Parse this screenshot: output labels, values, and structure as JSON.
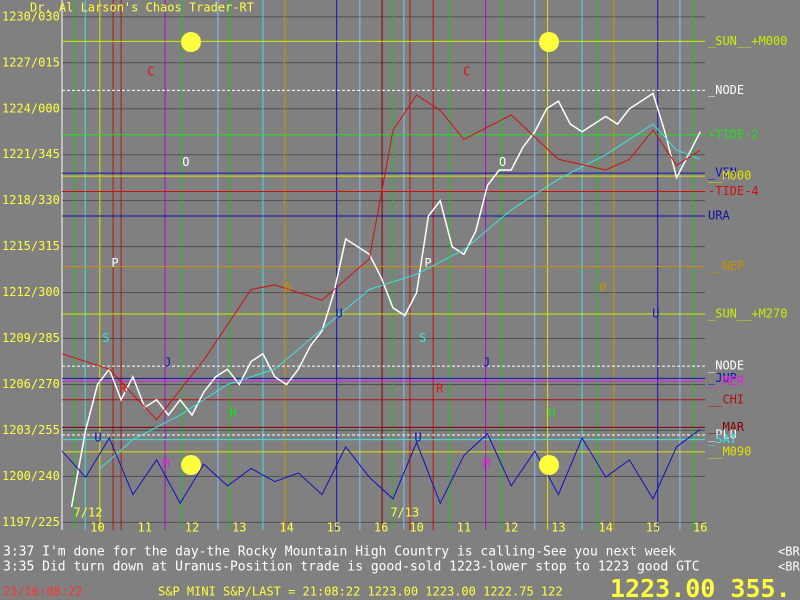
{
  "title": "Dr. Al Larson's Chaos Trader-RT",
  "chart_data": {
    "type": "line",
    "ylim": [
      1196.5,
      1231.1
    ],
    "xlim": [
      0,
      13.6
    ],
    "y2lim": [
      0,
      100
    ],
    "yticks": [
      {
        "value": 1230,
        "label": "1230/030"
      },
      {
        "value": 1227,
        "label": "1227/015"
      },
      {
        "value": 1224,
        "label": "1224/000"
      },
      {
        "value": 1221,
        "label": "1221/345"
      },
      {
        "value": 1218,
        "label": "1218/330"
      },
      {
        "value": 1215,
        "label": "1215/315"
      },
      {
        "value": 1212,
        "label": "1212/300"
      },
      {
        "value": 1209,
        "label": "1209/285"
      },
      {
        "value": 1206,
        "label": "1206/270"
      },
      {
        "value": 1203,
        "label": "1203/255"
      },
      {
        "value": 1200,
        "label": "1200/240"
      },
      {
        "value": 1197,
        "label": "1197/225"
      }
    ],
    "xticks": [
      {
        "value": 0.75,
        "label": "10"
      },
      {
        "value": 1.75,
        "label": "11"
      },
      {
        "value": 2.75,
        "label": "12"
      },
      {
        "value": 3.75,
        "label": "13"
      },
      {
        "value": 4.75,
        "label": "14"
      },
      {
        "value": 5.75,
        "label": "15"
      },
      {
        "value": 6.75,
        "label": "16"
      },
      {
        "value": 7.5,
        "label": "10"
      },
      {
        "value": 8.5,
        "label": "11"
      },
      {
        "value": 9.5,
        "label": "12"
      },
      {
        "value": 10.5,
        "label": "13"
      },
      {
        "value": 11.5,
        "label": "14"
      },
      {
        "value": 12.5,
        "label": "15"
      },
      {
        "value": 13.5,
        "label": "16"
      }
    ],
    "dates": [
      {
        "value": 0.55,
        "label": "7/12"
      },
      {
        "value": 7.25,
        "label": "7/13"
      }
    ],
    "series": [
      {
        "name": "price",
        "color": "#ffffff",
        "x": [
          0.2,
          0.5,
          0.75,
          1,
          1.25,
          1.5,
          1.75,
          2,
          2.25,
          2.5,
          2.75,
          3,
          3.25,
          3.5,
          3.75,
          4,
          4.25,
          4.5,
          4.75,
          5,
          5.25,
          5.5,
          5.75,
          6,
          6.25,
          6.5,
          6.75,
          7,
          7.25,
          7.5,
          7.75,
          8,
          8.25,
          8.5,
          8.75,
          9,
          9.25,
          9.5,
          9.75,
          10,
          10.25,
          10.5,
          10.75,
          11,
          11.25,
          11.5,
          11.75,
          12,
          12.25,
          12.5,
          12.75,
          13,
          13.25,
          13.5
        ],
        "values": [
          1198,
          1203,
          1206,
          1207,
          1205,
          1206.5,
          1204.5,
          1205,
          1204,
          1205,
          1204,
          1205.5,
          1206.5,
          1207,
          1206,
          1207.5,
          1208,
          1206.5,
          1206,
          1207,
          1208.5,
          1209.5,
          1212,
          1215.5,
          1215,
          1214.5,
          1213,
          1211,
          1210.5,
          1212,
          1217,
          1218,
          1215,
          1214.5,
          1216,
          1219,
          1220,
          1220,
          1221.5,
          1222.5,
          1224,
          1224.5,
          1223,
          1222.5,
          1223,
          1223.5,
          1223,
          1224,
          1224.5,
          1225,
          1222.5,
          1219.5,
          1221,
          1222.5
        ]
      },
      {
        "name": "average",
        "color": "#40e0e0",
        "x": [
          0.8,
          1.5,
          2.5,
          3.5,
          4.5,
          5.5,
          6.5,
          7.5,
          8.5,
          9.5,
          10.5,
          11.5,
          12.5,
          13,
          13.5
        ],
        "values": [
          1200.5,
          1202.4,
          1204,
          1206,
          1207,
          1209.6,
          1212.2,
          1213.2,
          1214.8,
          1217.4,
          1219.4,
          1221,
          1223,
          1221.3,
          1220.7
        ]
      },
      {
        "name": "red",
        "color": "#d01010",
        "x": [
          0,
          1,
          2,
          3,
          4,
          4.5,
          5.5,
          6.5,
          7,
          7.5,
          8,
          8.5,
          9.5,
          10.5,
          11.5,
          12,
          12.5,
          13,
          13.5
        ],
        "values": [
          1208,
          1207,
          1203.7,
          1207.6,
          1212.2,
          1212.5,
          1211.5,
          1214.2,
          1222.6,
          1224.9,
          1223.9,
          1222,
          1223.6,
          1220.7,
          1220,
          1220.7,
          1222.6,
          1220.3,
          1221.3
        ]
      },
      {
        "name": "oscillator",
        "color": "#1010c0",
        "axis": "y2",
        "x": [
          0,
          0.5,
          1,
          1.5,
          2,
          2.5,
          3,
          3.5,
          4,
          4.5,
          5,
          5.5,
          6,
          6.5,
          7,
          7.5,
          8,
          8.5,
          9,
          9.5,
          10,
          10.5,
          11,
          11.5,
          12,
          12.5,
          13,
          13.5
        ],
        "values": [
          70,
          40,
          85,
          20,
          60,
          10,
          55,
          30,
          50,
          35,
          45,
          20,
          75,
          40,
          15,
          80,
          10,
          65,
          90,
          30,
          70,
          20,
          85,
          40,
          60,
          15,
          75,
          95
        ]
      }
    ],
    "levels": [
      {
        "label": "_SUN__+M000",
        "value": 1228.4,
        "color": "#c8f000"
      },
      {
        "label": "_NODE",
        "value": 1225.2,
        "color": "#ffffff"
      },
      {
        "label": "+TIDE-2",
        "value": 1222.3,
        "color": "#20e020"
      },
      {
        "label": "_VEN",
        "value": 1219.8,
        "color": "#1010c0"
      },
      {
        "label": "__M000",
        "value": 1219.6,
        "color": "#e0e000"
      },
      {
        "label": "-TIDE-4",
        "value": 1218.6,
        "color": "#d01010"
      },
      {
        "label": "URA",
        "value": 1217,
        "color": "#1010a0"
      },
      {
        "label": "__NEP",
        "value": 1213.7,
        "color": "#c89000"
      },
      {
        "label": "_SUN__+M270",
        "value": 1210.6,
        "color": "#c8f000"
      },
      {
        "label": "_NODE",
        "value": 1207.2,
        "color": "#ffffff"
      },
      {
        "label": "_JUP",
        "value": 1206.4,
        "color": "#1010c0"
      },
      {
        "label": "__MER",
        "value": 1206.2,
        "color": "#e020e0"
      },
      {
        "label": "__CHI",
        "value": 1205,
        "color": "#b01010"
      },
      {
        "label": "__MAR",
        "value": 1203.2,
        "color": "#800000"
      },
      {
        "label": "_PLU",
        "value": 1202.7,
        "color": "#ffffff"
      },
      {
        "label": "_SAT",
        "value": 1202.4,
        "color": "#40e0e0"
      },
      {
        "label": "__M090",
        "value": 1201.6,
        "color": "#e0e000"
      }
    ],
    "verticals": [
      {
        "x": 0.27,
        "color": "#20c020"
      },
      {
        "x": 0.49,
        "color": "#40e0e0"
      },
      {
        "x": 0.8,
        "color": "#e0e000"
      },
      {
        "x": 1.08,
        "color": "#c01010"
      },
      {
        "x": 1.25,
        "color": "#c01010"
      },
      {
        "x": 2.18,
        "color": "#a010c0"
      },
      {
        "x": 2.54,
        "color": "#20c020"
      },
      {
        "x": 3.3,
        "color": "#80c0ff"
      },
      {
        "x": 3.55,
        "color": "#20c020"
      },
      {
        "x": 4.25,
        "color": "#40e0e0"
      },
      {
        "x": 4.71,
        "color": "#c89000"
      },
      {
        "x": 5.81,
        "color": "#1010c0"
      },
      {
        "x": 6.3,
        "color": "#80c0ff"
      },
      {
        "x": 6.77,
        "color": "#800000"
      },
      {
        "x": 7.0,
        "color": "#20c020"
      },
      {
        "x": 7.23,
        "color": "#80c0ff"
      },
      {
        "x": 7.36,
        "color": "#c01010"
      },
      {
        "x": 7.85,
        "color": "#c01010"
      },
      {
        "x": 8.2,
        "color": "#20c020"
      },
      {
        "x": 8.96,
        "color": "#a010c0"
      },
      {
        "x": 9.3,
        "color": "#20c020"
      },
      {
        "x": 10.0,
        "color": "#80c0ff"
      },
      {
        "x": 10.27,
        "color": "#e0e000"
      },
      {
        "x": 11.0,
        "color": "#40e0e0"
      },
      {
        "x": 11.33,
        "color": "#20c020"
      },
      {
        "x": 11.67,
        "color": "#c89000"
      },
      {
        "x": 12.6,
        "color": "#1010c0"
      },
      {
        "x": 13.07,
        "color": "#80c0ff"
      },
      {
        "x": 13.34,
        "color": "#20c020"
      }
    ],
    "annotations": [
      {
        "text": "C",
        "x": 1.88,
        "y": 1226.4,
        "color": "#e01010"
      },
      {
        "text": "C",
        "x": 8.56,
        "y": 1226.4,
        "color": "#e01010"
      },
      {
        "text": "O",
        "x": 2.62,
        "y": 1220.5,
        "color": "#ffffff"
      },
      {
        "text": "O",
        "x": 9.32,
        "y": 1220.5,
        "color": "#ffffff"
      },
      {
        "text": "P",
        "x": 1.12,
        "y": 1213.9,
        "color": "#ffffff"
      },
      {
        "text": "P",
        "x": 7.74,
        "y": 1213.9,
        "color": "#ffffff"
      },
      {
        "text": "S",
        "x": 0.93,
        "y": 1209,
        "color": "#40e0e0"
      },
      {
        "text": "S",
        "x": 7.63,
        "y": 1209,
        "color": "#40e0e0"
      },
      {
        "text": "J",
        "x": 2.24,
        "y": 1207.4,
        "color": "#1010c0"
      },
      {
        "text": "J",
        "x": 8.98,
        "y": 1207.4,
        "color": "#1010c0"
      },
      {
        "text": "R",
        "x": 1.29,
        "y": 1205.7,
        "color": "#e01010"
      },
      {
        "text": "R",
        "x": 7.99,
        "y": 1205.7,
        "color": "#e01010"
      },
      {
        "text": "M",
        "x": 2.2,
        "y": 1200.8,
        "color": "#e020e0"
      },
      {
        "text": "M",
        "x": 8.98,
        "y": 1200.8,
        "color": "#e020e0"
      },
      {
        "text": "H",
        "x": 3.62,
        "y": 1204.1,
        "color": "#20e020"
      },
      {
        "text": "H",
        "x": 10.36,
        "y": 1204.1,
        "color": "#20e020"
      },
      {
        "text": "U",
        "x": 5.86,
        "y": 1210.6,
        "color": "#1010c0"
      },
      {
        "text": "U",
        "x": 12.56,
        "y": 1210.6,
        "color": "#1010c0"
      },
      {
        "text": "U",
        "x": 0.76,
        "y": 1202.5,
        "color": "#1010c0"
      },
      {
        "text": "U",
        "x": 7.53,
        "y": 1202.5,
        "color": "#1010c0"
      },
      {
        "text": "0",
        "x": 4.78,
        "y": 1212.3,
        "color": "#c89000"
      },
      {
        "text": "0",
        "x": 11.44,
        "y": 1212.3,
        "color": "#c89000"
      }
    ]
  },
  "messages": [
    "3:37 I'm done for the day-the Rocky Mountain High Country is calling-See you next week",
    "3:35 Did turn down at Uranus-Position trade is good-sold 1223-lower stop to 1223 good GTC"
  ],
  "message_tag": [
    "<BR",
    "<BR"
  ],
  "status": {
    "clock": "21/16:08:22",
    "quote": "S&P MINI S&P/LAST = 21:08:22 1223.00 1223.00 1222.75 122",
    "big": "1223.00 355."
  }
}
